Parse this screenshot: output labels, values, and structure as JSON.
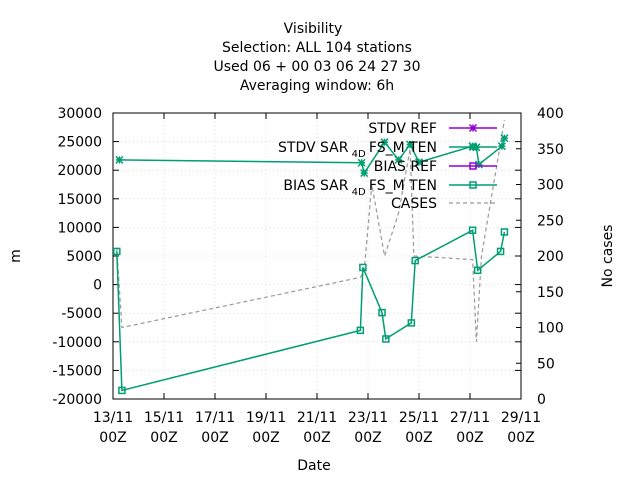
{
  "chart_data": {
    "type": "line",
    "title_lines": [
      "Visibility",
      "Selection: ALL     104 stations",
      "Used  06 + 00 03 06 24 27 30",
      "Averaging window:  6h"
    ],
    "xlabel": "Date",
    "ylabel": "m",
    "y2label": "No cases",
    "x_ticks": [
      {
        "top": "13/11",
        "bottom": "00Z",
        "day": 0
      },
      {
        "top": "15/11",
        "bottom": "00Z",
        "day": 2
      },
      {
        "top": "17/11",
        "bottom": "00Z",
        "day": 4
      },
      {
        "top": "19/11",
        "bottom": "00Z",
        "day": 6
      },
      {
        "top": "21/11",
        "bottom": "00Z",
        "day": 8
      },
      {
        "top": "23/11",
        "bottom": "00Z",
        "day": 10
      },
      {
        "top": "25/11",
        "bottom": "00Z",
        "day": 12
      },
      {
        "top": "27/11",
        "bottom": "00Z",
        "day": 14
      },
      {
        "top": "29/11",
        "bottom": "00Z",
        "day": 16
      }
    ],
    "xlim_days": [
      0,
      16
    ],
    "ylim": [
      -20000,
      30000
    ],
    "y_ticks": [
      -20000,
      -15000,
      -10000,
      -5000,
      0,
      5000,
      10000,
      15000,
      20000,
      25000,
      30000
    ],
    "y2lim": [
      0,
      400
    ],
    "y2_ticks": [
      0,
      50,
      100,
      150,
      200,
      250,
      300,
      350,
      400
    ],
    "grid": true,
    "legend_position": "top-right",
    "colors": {
      "ref": "#9400d3",
      "sar": "#009e73",
      "cases": "#999999"
    },
    "series": [
      {
        "name": "STDV REF",
        "legend_main": "STDV REF",
        "legend_sub": "",
        "legend_tail": "",
        "color": "#9400d3",
        "marker": "star",
        "axis": "y",
        "dash": false,
        "points": []
      },
      {
        "name": "STDV SAR_4DFS_MTEN",
        "legend_main": "STDV SAR",
        "legend_sub": "4D",
        "legend_tail": "FS_M TEN",
        "color": "#009e73",
        "marker": "star",
        "axis": "y",
        "dash": false,
        "points": [
          [
            0.25,
            21800
          ],
          [
            9.75,
            21300
          ],
          [
            9.85,
            19500
          ],
          [
            10.65,
            24900
          ],
          [
            11.2,
            21800
          ],
          [
            11.65,
            24500
          ],
          [
            12.0,
            21400
          ],
          [
            14.1,
            24200
          ],
          [
            14.25,
            24000
          ],
          [
            14.35,
            21000
          ],
          [
            15.25,
            24200
          ],
          [
            15.35,
            25600
          ]
        ]
      },
      {
        "name": "BIAS REF",
        "legend_main": "BIAS REF",
        "legend_sub": "",
        "legend_tail": "",
        "color": "#9400d3",
        "marker": "box",
        "axis": "y",
        "dash": false,
        "points": []
      },
      {
        "name": "BIAS SAR_4DFS_MTEN",
        "legend_main": "BIAS SAR",
        "legend_sub": "4D",
        "legend_tail": "FS_M TEN",
        "color": "#009e73",
        "marker": "box",
        "axis": "y",
        "dash": false,
        "points": [
          [
            0.15,
            5800
          ],
          [
            0.35,
            -18500
          ],
          [
            9.7,
            -8000
          ],
          [
            9.8,
            3000
          ],
          [
            10.55,
            -4900
          ],
          [
            10.7,
            -9500
          ],
          [
            11.7,
            -6700
          ],
          [
            11.85,
            4200
          ],
          [
            14.1,
            9500
          ],
          [
            14.3,
            2500
          ],
          [
            15.2,
            5800
          ],
          [
            15.35,
            9200
          ]
        ]
      },
      {
        "name": "CASES",
        "legend_main": "CASES",
        "legend_sub": "",
        "legend_tail": "",
        "color": "#999999",
        "marker": "none",
        "axis": "y2",
        "dash": true,
        "points": [
          [
            0.15,
            210
          ],
          [
            0.35,
            100
          ],
          [
            9.7,
            170
          ],
          [
            9.85,
            180
          ],
          [
            10.15,
            300
          ],
          [
            10.65,
            200
          ],
          [
            11.2,
            260
          ],
          [
            11.65,
            350
          ],
          [
            11.8,
            200
          ],
          [
            14.1,
            195
          ],
          [
            14.25,
            80
          ],
          [
            14.45,
            200
          ],
          [
            15.35,
            390
          ]
        ]
      }
    ]
  }
}
